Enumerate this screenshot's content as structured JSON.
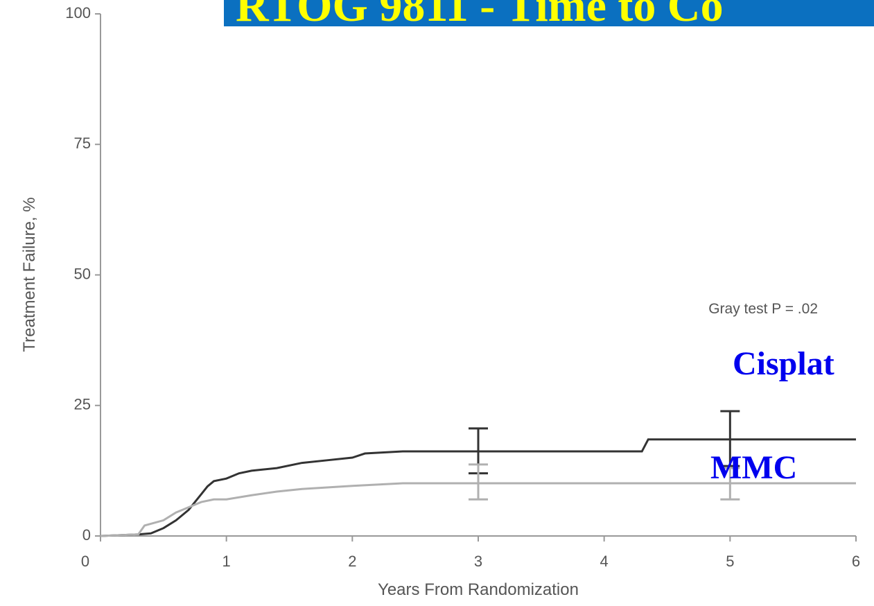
{
  "chart_data": {
    "type": "line",
    "title": "RTOG 9811 - Time to Co",
    "x_label": "Years From Randomization",
    "y_label": "Treatment Failure, %",
    "annotation": "Gray test P = .02",
    "xlim": [
      0,
      6
    ],
    "xticks": [
      0,
      1,
      2,
      3,
      4,
      5,
      6
    ],
    "ylim": [
      0,
      100
    ],
    "yticks": [
      0,
      25,
      50,
      75,
      100
    ],
    "series": [
      {
        "name": "Cisplat",
        "color": "#333333",
        "label_color": "#0000ee",
        "x": [
          0,
          0.3,
          0.4,
          0.5,
          0.6,
          0.7,
          0.8,
          0.85,
          0.9,
          1.0,
          1.1,
          1.2,
          1.4,
          1.6,
          1.8,
          2.0,
          2.1,
          2.4,
          3,
          4.3,
          4.35,
          6
        ],
        "values": [
          0,
          0.3,
          0.5,
          1.5,
          3,
          5,
          8,
          9.5,
          10.5,
          11,
          12,
          12.5,
          13,
          14,
          14.5,
          15,
          15.8,
          16.2,
          16.2,
          16.2,
          18.5,
          18.5
        ],
        "error_x": [
          3,
          5
        ],
        "error_low": [
          12,
          13.4
        ],
        "error_high": [
          20.6,
          23.9
        ]
      },
      {
        "name": "MMC",
        "color": "#b0b0b0",
        "label_color": "#0000ee",
        "x": [
          0,
          0.3,
          0.35,
          0.5,
          0.6,
          0.7,
          0.8,
          0.9,
          1.0,
          1.2,
          1.4,
          1.6,
          1.8,
          2.0,
          2.4,
          6
        ],
        "values": [
          0,
          0.3,
          2,
          3,
          4.5,
          5.5,
          6.5,
          7,
          7,
          7.8,
          8.5,
          9,
          9.3,
          9.6,
          10.1,
          10.1
        ],
        "error_x": [
          3,
          5
        ],
        "error_low": [
          7,
          7
        ],
        "error_high": [
          13.7,
          13
        ]
      }
    ]
  }
}
